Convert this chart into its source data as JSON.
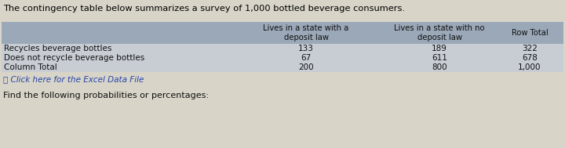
{
  "title": "The contingency table below summarizes a survey of 1,000 bottled beverage consumers.",
  "col_headers": [
    "Lives in a state with a\ndeposit law",
    "Lives in a state with no\ndeposit law",
    "Row Total"
  ],
  "row_labels": [
    "Recycles beverage bottles",
    "Does not recycle beverage bottles",
    "Column Total"
  ],
  "table_data": [
    [
      "133",
      "189",
      "322"
    ],
    [
      "67",
      "611",
      "678"
    ],
    [
      "200",
      "800",
      "1,000"
    ]
  ],
  "link_text": "⎙ Click here for the Excel Data File",
  "footer_text": "Find the following probabilities or percentages:",
  "bg_color": "#c8cdd4",
  "header_bg": "#9aa8b8",
  "outer_bg": "#d8d4c8",
  "title_color": "#000000",
  "text_color": "#111111",
  "link_color": "#2244aa",
  "font_size_title": 8.2,
  "font_size_header": 7.2,
  "font_size_table": 7.5,
  "font_size_footer": 8.0
}
